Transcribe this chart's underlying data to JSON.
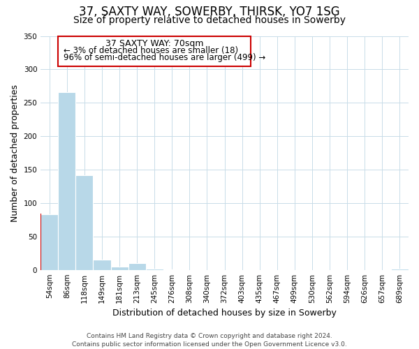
{
  "title": "37, SAXTY WAY, SOWERBY, THIRSK, YO7 1SG",
  "subtitle": "Size of property relative to detached houses in Sowerby",
  "xlabel": "Distribution of detached houses by size in Sowerby",
  "ylabel": "Number of detached properties",
  "bins": [
    "54sqm",
    "86sqm",
    "118sqm",
    "149sqm",
    "181sqm",
    "213sqm",
    "245sqm",
    "276sqm",
    "308sqm",
    "340sqm",
    "372sqm",
    "403sqm",
    "435sqm",
    "467sqm",
    "499sqm",
    "530sqm",
    "562sqm",
    "594sqm",
    "626sqm",
    "657sqm",
    "689sqm"
  ],
  "values": [
    83,
    266,
    142,
    15,
    5,
    10,
    2,
    1,
    0,
    0,
    0,
    0,
    0,
    0,
    0,
    0,
    0,
    0,
    0,
    0,
    2
  ],
  "bar_color": "#b8d8e8",
  "bar_edge_color": "#b8d8e8",
  "highlight_color": "#cc0000",
  "highlight_bin_index": 0,
  "annotation_title": "37 SAXTY WAY: 70sqm",
  "annotation_line1": "← 3% of detached houses are smaller (18)",
  "annotation_line2": "96% of semi-detached houses are larger (499) →",
  "annotation_box_color": "white",
  "annotation_box_edge": "#cc0000",
  "ylim": [
    0,
    350
  ],
  "yticks": [
    0,
    50,
    100,
    150,
    200,
    250,
    300,
    350
  ],
  "footer1": "Contains HM Land Registry data © Crown copyright and database right 2024.",
  "footer2": "Contains public sector information licensed under the Open Government Licence v3.0.",
  "bg_color": "#ffffff",
  "grid_color": "#c8dce8",
  "title_fontsize": 12,
  "subtitle_fontsize": 10,
  "axis_label_fontsize": 9,
  "tick_fontsize": 7.5,
  "footer_fontsize": 6.5,
  "annot_title_fontsize": 9,
  "annot_text_fontsize": 8.5
}
